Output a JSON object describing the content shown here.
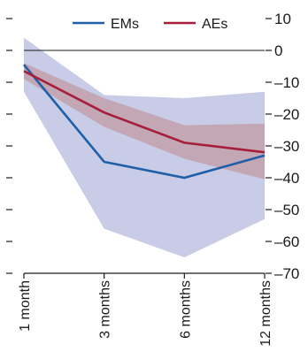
{
  "chart_data": {
    "type": "line",
    "title": "",
    "xlabel": "",
    "ylabel": "",
    "categories": [
      "1 month",
      "3 months",
      "6 months",
      "12 months"
    ],
    "ylim": [
      -70,
      10
    ],
    "yticks": [
      10,
      0,
      -10,
      -20,
      -30,
      -40,
      -50,
      -60,
      -70
    ],
    "ytick_labels": [
      "10",
      "0",
      "–10",
      "–20",
      "–30",
      "–40",
      "–50",
      "–60",
      "–70"
    ],
    "grid": false,
    "zero_line": true,
    "legend_position": "top",
    "series": [
      {
        "name": "EMs",
        "color": "#1f5fa8",
        "values": [
          -4.5,
          -35,
          -40,
          -33
        ],
        "band": {
          "upper": [
            4,
            -14,
            -15,
            -13
          ],
          "lower": [
            -13,
            -56,
            -65,
            -53
          ],
          "color": "#c8cce6"
        }
      },
      {
        "name": "AEs",
        "color": "#a61e3a",
        "values": [
          -6.5,
          -19.5,
          -29,
          -32
        ],
        "band": {
          "upper": [
            -4,
            -15,
            -23.5,
            -23
          ],
          "lower": [
            -9,
            -24,
            -34,
            -40.5
          ],
          "color": "#c2a0ab"
        }
      }
    ]
  }
}
